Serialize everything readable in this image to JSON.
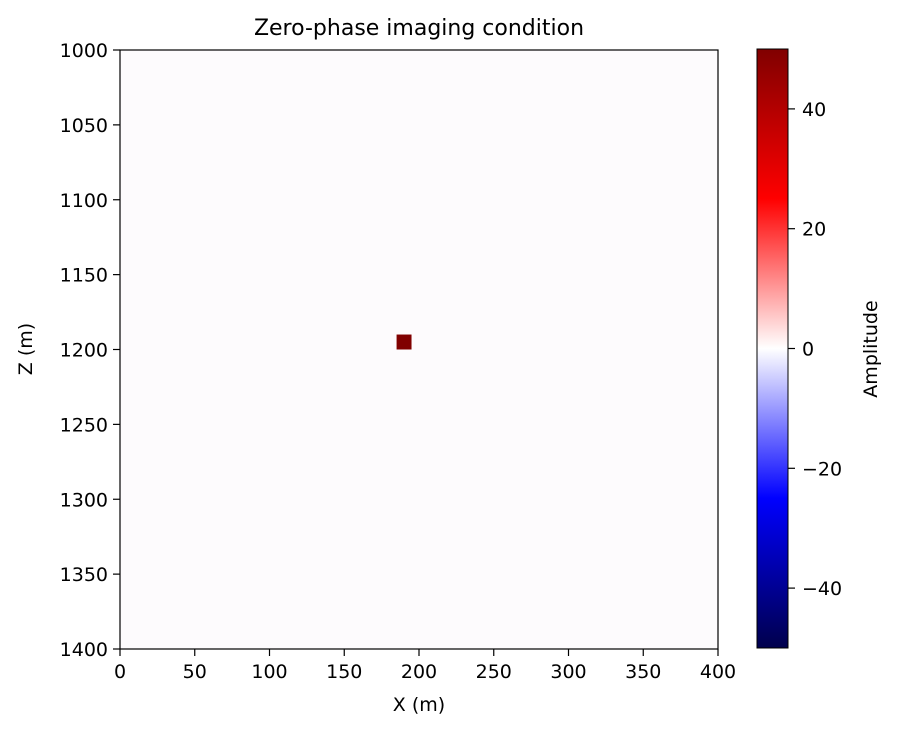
{
  "chart_data": {
    "type": "heatmap",
    "title": "Zero-phase imaging condition",
    "xlabel": "X (m)",
    "ylabel": "Z (m)",
    "xlim": [
      0,
      400
    ],
    "ylim": [
      1400,
      1000
    ],
    "x_ticks": [
      0,
      50,
      100,
      150,
      200,
      250,
      300,
      350,
      400
    ],
    "y_ticks": [
      1000,
      1050,
      1100,
      1150,
      1200,
      1250,
      1300,
      1350,
      1400
    ],
    "colormap": "seismic",
    "background_value": 0,
    "features": [
      {
        "x_range": [
          185,
          195
        ],
        "z_range": [
          1190,
          1200
        ],
        "value": 50
      }
    ],
    "colorbar": {
      "label": "Amplitude",
      "range": [
        -50,
        50
      ],
      "ticks": [
        40,
        20,
        0,
        -20,
        -40
      ],
      "tick_labels": [
        "40",
        "20",
        "0",
        "−20",
        "−40"
      ]
    }
  }
}
